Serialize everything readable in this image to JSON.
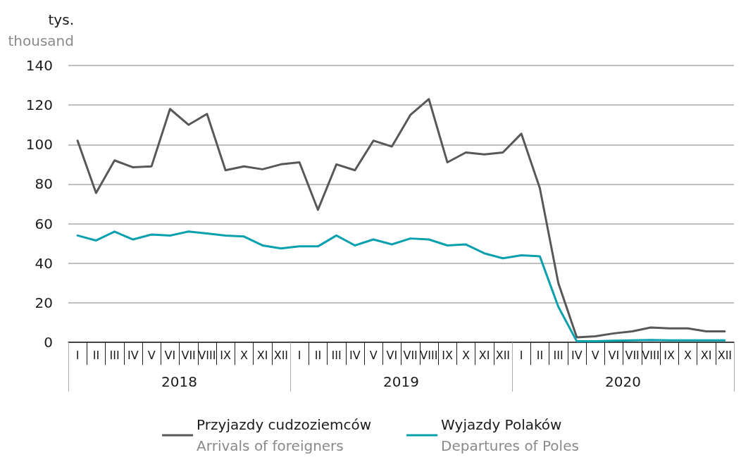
{
  "chart_data": {
    "type": "line",
    "ylabel": "tys.\nthousand",
    "categories": [
      "I",
      "II",
      "III",
      "IV",
      "V",
      "VI",
      "VII",
      "VIII",
      "IX",
      "X",
      "XI",
      "XII",
      "I",
      "II",
      "III",
      "IV",
      "V",
      "VI",
      "VII",
      "VIII",
      "IX",
      "X",
      "XI",
      "XII",
      "I",
      "II",
      "III",
      "IV",
      "V",
      "VI",
      "VII",
      "VIII",
      "IX",
      "X",
      "XI",
      "XII"
    ],
    "annotations": [
      "2018",
      "2019",
      "2020"
    ],
    "series": [
      {
        "name": "Przyjazdy cudzoziemców\nArrivals of foreigners",
        "color": "#58585a",
        "values": [
          102,
          75.5,
          92,
          88.5,
          89,
          118,
          110,
          115.5,
          87,
          89,
          87.5,
          90,
          91,
          67,
          90,
          87,
          102,
          99,
          115,
          123,
          91,
          96,
          95,
          96,
          105.5,
          78,
          30,
          2.5,
          3,
          4.5,
          5.5,
          7.5,
          7,
          7,
          5.5,
          5.5
        ]
      },
      {
        "name": "Wyjazdy Polaków\nDepartures of Poles",
        "color": "#0aa0ad",
        "values": [
          54,
          51.5,
          56,
          52,
          54.5,
          54,
          56,
          55,
          54,
          53.5,
          49,
          47.5,
          48.5,
          48.5,
          54,
          49,
          52,
          49.5,
          52.5,
          52,
          49,
          49.5,
          45,
          42.5,
          44,
          43.5,
          18,
          0.5,
          0.5,
          0.8,
          1,
          1.2,
          1,
          1,
          1,
          1
        ]
      }
    ],
    "ylim": [
      0,
      140
    ],
    "yticks": [
      0,
      20,
      40,
      60,
      80,
      100,
      120,
      140
    ],
    "grid": "y",
    "legend": "bottom",
    "marker": "none",
    "line_style": "solid"
  }
}
